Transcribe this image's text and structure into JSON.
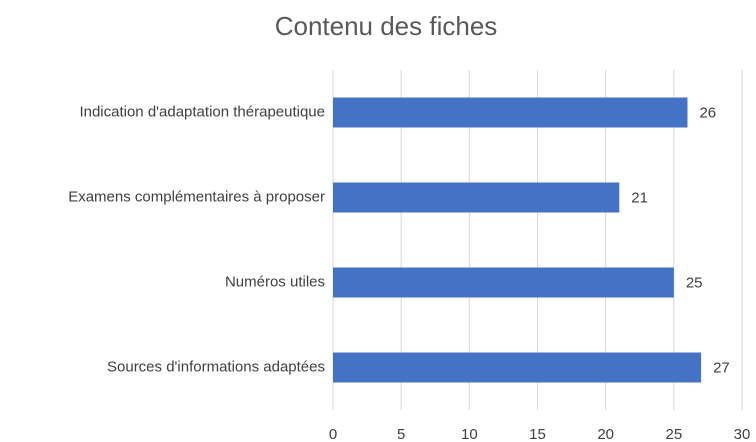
{
  "chart_data": {
    "type": "hbar",
    "title": "Contenu des fiches",
    "categories": [
      "Indication d'adaptation thérapeutique",
      "Examens complémentaires à proposer",
      "Numéros utiles",
      "Sources d'informations adaptées"
    ],
    "values": [
      26,
      21,
      25,
      27
    ],
    "color": "#4472c4",
    "xlim": [
      0,
      30
    ],
    "xticks": [
      0,
      5,
      10,
      15,
      20,
      25,
      30
    ],
    "grid": true
  }
}
